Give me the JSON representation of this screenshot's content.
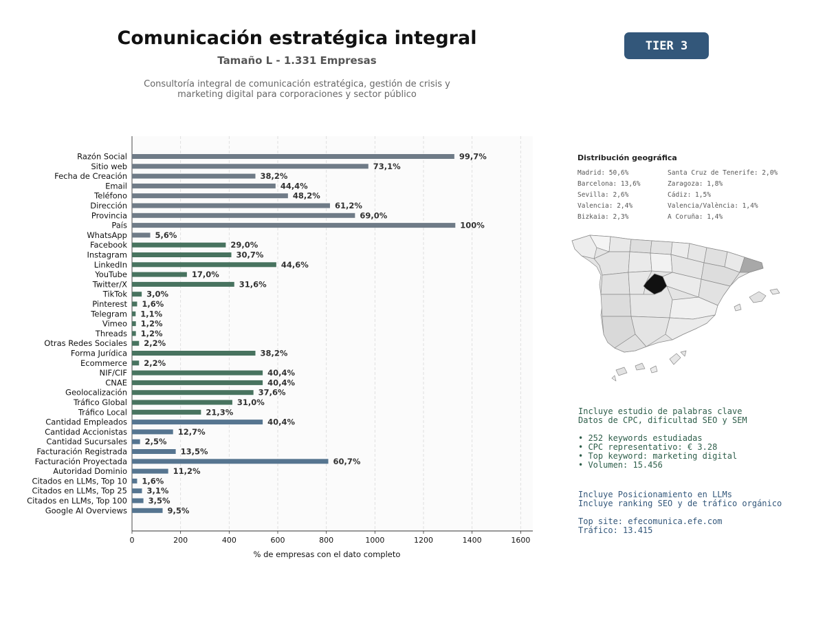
{
  "header": {
    "title": "Comunicación estratégica integral",
    "subtitle": "Tamaño L - 1.331 Empresas",
    "description_line1": "Consultoría integral de comunicación estratégica, gestión de crisis y",
    "description_line2": "marketing digital para corporaciones y sector público",
    "tier_badge": "TIER 3"
  },
  "colors": {
    "gray_bar": "#6f7b87",
    "green_bar": "#48735f",
    "blue_bar": "#567590",
    "tier_badge": "#33577a",
    "map_highlight": "#111111"
  },
  "chart_data": {
    "type": "bar",
    "orientation": "horizontal",
    "xlabel": "% de empresas con el dato completo",
    "xlim": [
      0,
      1650
    ],
    "xticks": [
      0,
      200,
      400,
      600,
      800,
      1000,
      1200,
      1400,
      1600
    ],
    "grid": "vertical dashed",
    "categories": [
      "Razón Social",
      "Sitio web",
      "Fecha de Creación",
      "Email",
      "Teléfono",
      "Dirección",
      "Provincia",
      "País",
      "WhatsApp",
      "Facebook",
      "Instagram",
      "LinkedIn",
      "YouTube",
      "Twitter/X",
      "TikTok",
      "Pinterest",
      "Telegram",
      "Vimeo",
      "Threads",
      "Otras Redes Sociales",
      "Forma Jurídica",
      "Ecommerce",
      "NIF/CIF",
      "CNAE",
      "Geolocalización",
      "Tráfico Global",
      "Tráfico Local",
      "Cantidad Empleados",
      "Cantidad Accionistas",
      "Cantidad Sucursales",
      "Facturación Registrada",
      "Facturación Proyectada",
      "Autoridad Dominio",
      "Citados en LLMs, Top 10",
      "Citados en LLMs, Top 25",
      "Citados en LLMs, Top 100",
      "Google AI Overviews"
    ],
    "values": [
      1327,
      973,
      508,
      591,
      642,
      815,
      918,
      1331,
      75,
      386,
      409,
      594,
      226,
      421,
      40,
      21,
      15,
      16,
      16,
      29,
      508,
      29,
      538,
      538,
      500,
      413,
      284,
      538,
      169,
      33,
      180,
      808,
      149,
      21,
      41,
      47,
      126
    ],
    "labels": [
      "99,7%",
      "73,1%",
      "38,2%",
      "44,4%",
      "48,2%",
      "61,2%",
      "69,0%",
      "100%",
      "5,6%",
      "29,0%",
      "30,7%",
      "44,6%",
      "17,0%",
      "31,6%",
      "3,0%",
      "1,6%",
      "1,1%",
      "1,2%",
      "1,2%",
      "2,2%",
      "38,2%",
      "2,2%",
      "40,4%",
      "40,4%",
      "37,6%",
      "31,0%",
      "21,3%",
      "40,4%",
      "12,7%",
      "2,5%",
      "13,5%",
      "60,7%",
      "11,2%",
      "1,6%",
      "3,1%",
      "3,5%",
      "9,5%"
    ],
    "groups": [
      "gray",
      "gray",
      "gray",
      "gray",
      "gray",
      "gray",
      "gray",
      "gray",
      "gray",
      "green",
      "green",
      "green",
      "green",
      "green",
      "green",
      "green",
      "green",
      "green",
      "green",
      "green",
      "green",
      "green",
      "green",
      "green",
      "green",
      "green",
      "green",
      "blue",
      "blue",
      "blue",
      "blue",
      "blue",
      "blue",
      "blue",
      "blue",
      "blue",
      "blue"
    ]
  },
  "geo": {
    "title": "Distribución geográfica",
    "items": [
      "Madrid: 50,6%",
      "Santa Cruz de Tenerife: 2,0%",
      "Barcelona: 13,6%",
      "Zaragoza: 1,8%",
      "Sevilla: 2,6%",
      "Cádiz: 1,5%",
      "Valencia: 2,4%",
      "Valencia/València: 1,4%",
      "Bizkaia: 2,3%",
      "A Coruña: 1,4%"
    ]
  },
  "keywords": {
    "line1": "Incluye estudio de palabras clave",
    "line2": "Datos de CPC, dificultad SEO y SEM",
    "bullet1": "• 252 keywords estudiadas",
    "bullet2": "• CPC representativo: € 3.28",
    "bullet3": "• Top keyword: marketing digital",
    "bullet4": "• Volumen: 15.456"
  },
  "llm": {
    "line1": "Incluye Posicionamiento en LLMs",
    "line2": "Incluye ranking SEO y de tráfico orgánico",
    "top_site": "Top site: efecomunica.efe.com",
    "traffic": "Tráfico: 13.415"
  }
}
